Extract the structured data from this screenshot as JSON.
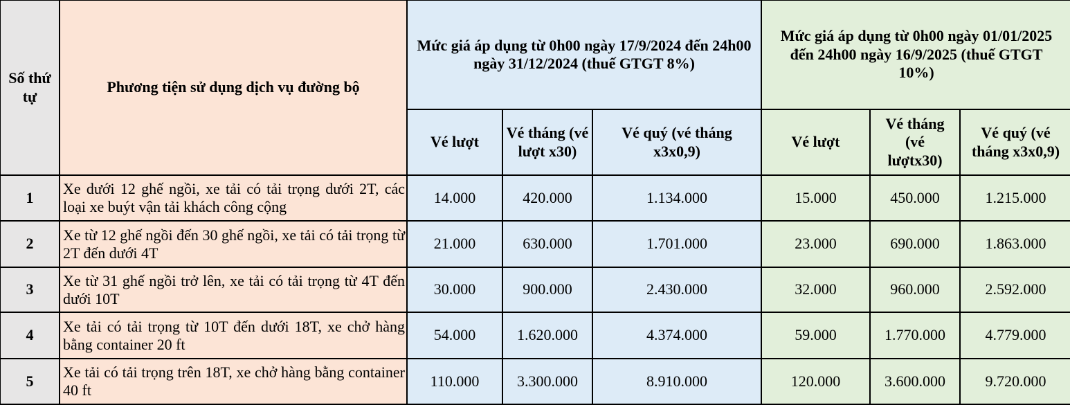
{
  "header": {
    "stt": "Số thứ tự",
    "vehicle": "Phương tiện sử dụng dịch vụ đường bộ",
    "period_2024": "Mức giá áp dụng từ 0h00 ngày 17/9/2024 đến 24h00 ngày 31/12/2024 (thuế GTGT 8%)",
    "period_2025": "Mức giá áp dụng từ 0h00 ngày 01/01/2025 đến 24h00 ngày 16/9/2025 (thuế GTGT 10%)",
    "sub_2024": [
      "Vé lượt",
      "Vé tháng (vé lượt x30)",
      "Vé quý (vé tháng x3x0,9)"
    ],
    "sub_2025": [
      "Vé lượt",
      "Vé tháng (vé lượtx30)",
      "Vé quý (vé tháng x3x0,9)"
    ]
  },
  "colors": {
    "stt": "#e7e6e6",
    "vehicle": "#fce4d6",
    "period_2024": "#ddebf7",
    "period_2025": "#e2efda"
  },
  "rows": [
    {
      "stt": "1",
      "vehicle": "Xe dưới 12 ghế ngồi, xe tải có tải trọng dưới 2T, các loại xe buýt vận tải khách công cộng",
      "v2024": [
        "14.000",
        "420.000",
        "1.134.000"
      ],
      "v2025": [
        "15.000",
        "450.000",
        "1.215.000"
      ]
    },
    {
      "stt": "2",
      "vehicle": "Xe từ 12 ghế ngồi đến 30 ghế ngồi, xe tải có tải trọng từ 2T đến dưới 4T",
      "v2024": [
        "21.000",
        "630.000",
        "1.701.000"
      ],
      "v2025": [
        "23.000",
        "690.000",
        "1.863.000"
      ]
    },
    {
      "stt": "3",
      "vehicle": "Xe từ 31 ghế ngồi trở lên, xe tải có tải trọng từ 4T đến dưới 10T",
      "v2024": [
        "30.000",
        "900.000",
        "2.430.000"
      ],
      "v2025": [
        "32.000",
        "960.000",
        "2.592.000"
      ]
    },
    {
      "stt": "4",
      "vehicle": "Xe tải có tải trọng từ 10T đến dưới 18T, xe chở hàng bằng container 20 ft",
      "v2024": [
        "54.000",
        "1.620.000",
        "4.374.000"
      ],
      "v2025": [
        "59.000",
        "1.770.000",
        "4.779.000"
      ]
    },
    {
      "stt": "5",
      "vehicle": "Xe tải có tải trọng trên 18T, xe chở hàng bằng container 40 ft",
      "v2024": [
        "110.000",
        "3.300.000",
        "8.910.000"
      ],
      "v2025": [
        "120.000",
        "3.600.000",
        "9.720.000"
      ]
    }
  ]
}
